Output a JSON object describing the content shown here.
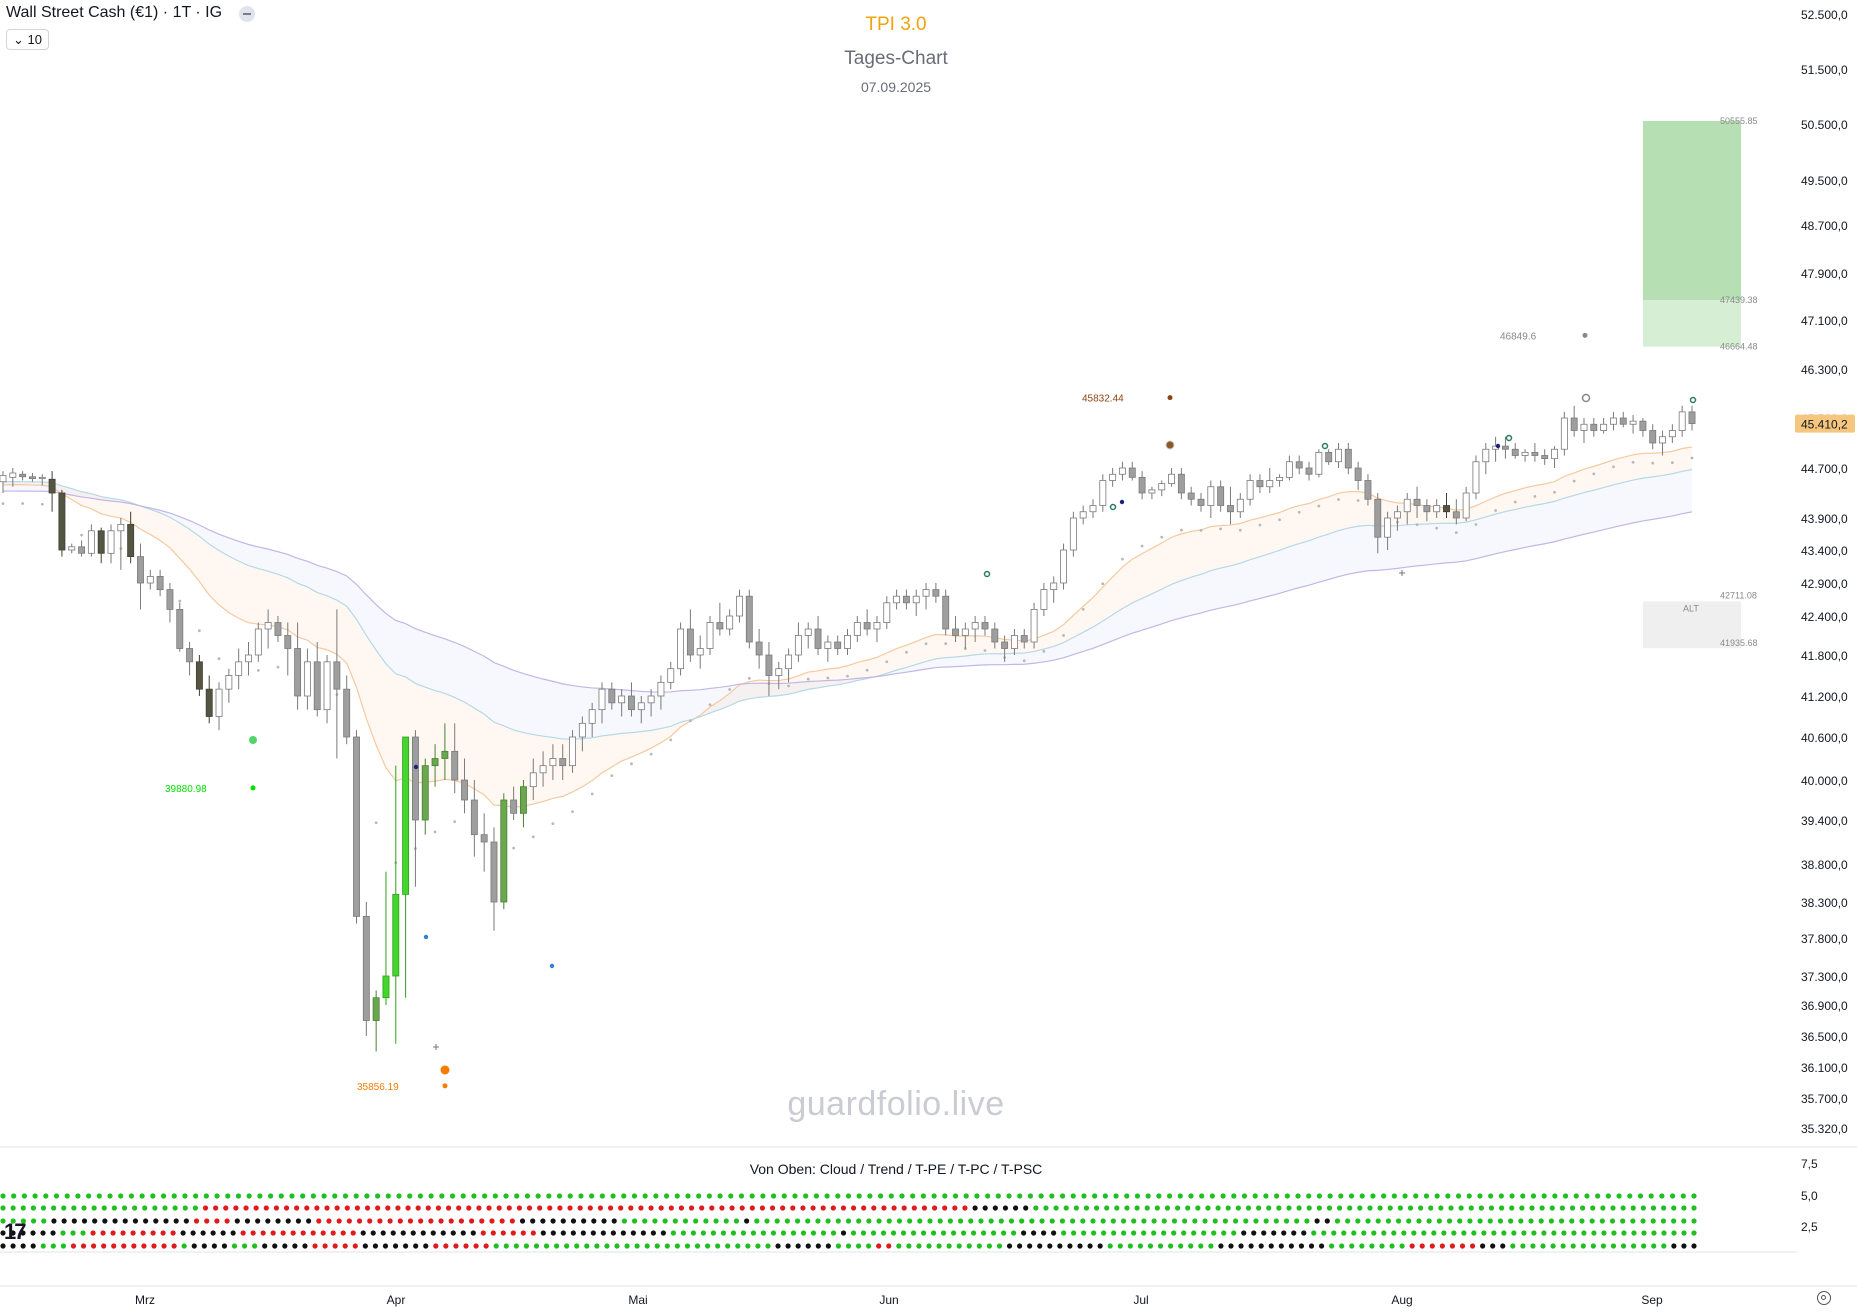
{
  "header": {
    "symbol": "Wall Street Cash (€1) · 1T · IG",
    "count_label": "10"
  },
  "titles": {
    "main": "TPI 3.0",
    "sub": "Tages-Chart",
    "date": "07.09.2025"
  },
  "watermark": "guardfolio.live",
  "indicator": {
    "caption": "Von Oben: Cloud / Trend / T-PE / T-PC / T-PSC",
    "y_ticks": [
      "7,5",
      "5,0",
      "2,5"
    ],
    "rows": [
      "GGGGGGGGGGGGGGGGGGGGGGGGGGGGGGGGGGGGGGGGGGGGGGGGGGGGGGGGGGGGGGGGGGGGGGGGGGGGGGGGGGGGGGGGGGGGGGGGGGGGGGGGGGGGGGGGGGGGGGGGGGGGGGGGGGGGGGGGGGGGGGGGGGGGGGGGGGGGGGG",
      "GGGGGGGGGGGGGGGGGGGGRRRRRRRRRRRRRRRRRRRRRRRRRRRRRRRRRRRRRRRRRRRRRRRRRRRRRRRRRRRRRRRRRRRRRRRRRRRRBBBBBBGGGGGGGGGGGGGGGGGGGGGGGGGGGGGGGGGGGGGGGGGGGGGGGGGGGGGGGGGGGGGGGGGG",
      "GGGGGBBBBBBBBBBBBBBRRRRBBBBBBBBRRRRRRRRRRRRRRRRRRRRBBBBBBBBBBGGGGGGGGGGGGBGGGGGGGGGGGGGGGGGGGGGGGGGGGGGGGGGGGGGGGGGGGGGGGGGGGGGGGBBGGGGGGGGGGGGGGGGGGGGGGGGGGGGGGGGGGGG",
      "BBBBBBGGGRRRRRRRRRBBBBBBRRRRRRRRRRRRBBBBBBBBBBBBRRRRRRBBBBBBBBBBBBBGGGGGGGGGGGGGGGGGBGGGGGGGGGGGGGGGGGBBBBGGGGGGGGGGGGGGGGGGBBBBBBBGGGGGGGGGGGGGGGGGGGGGGGGGGGGGGGGGGGGGGG",
      "BBBBGGGRRRRRRRRRRRGBBBBGGGBBBBBRRRRRBBBBBBBRRRRRRGGGGGGGGGGGGGGGGGGGGGGGGGGGGBBBBBBGGGGRRGGGGGGGGGGGBBBBBBBBBBGGGGGGGGGGGBBBBBBBBBBBGGGGGGGGRRRRRRRBBBGGGGGGGGGGGGGGGGBBB"
    ]
  },
  "chart_data": {
    "type": "candlestick",
    "x_labels": [
      "Mrz",
      "Apr",
      "Mai",
      "Jun",
      "Jul",
      "Aug",
      "Sep"
    ],
    "y_ticks": [
      "52.500,0",
      "51.500,0",
      "50.500,0",
      "49.500,0",
      "48.700,0",
      "47.900,0",
      "47.100,0",
      "46.300,0",
      "45.500,0",
      "44.700,0",
      "43.900,0",
      "43.400,0",
      "42.900,0",
      "42.400,0",
      "41.800,0",
      "41.200,0",
      "40.600,0",
      "40.000,0",
      "39.400,0",
      "38.800,0",
      "38.300,0",
      "37.800,0",
      "37.300,0",
      "36.900,0",
      "36.500,0",
      "36.100,0",
      "35.700,0",
      "35.320,0"
    ],
    "y_range": [
      35000,
      52800
    ],
    "last_price": "45.410,2",
    "candles": [
      [
        44480,
        44650,
        44300,
        44580
      ],
      [
        44550,
        44700,
        44400,
        44620
      ],
      [
        44600,
        44650,
        44500,
        44560
      ],
      [
        44560,
        44620,
        44480,
        44530
      ],
      [
        44530,
        44600,
        44420,
        44550
      ],
      [
        44520,
        44650,
        44000,
        44300
      ],
      [
        44300,
        44350,
        43300,
        43400
      ],
      [
        43400,
        43500,
        43350,
        43450
      ],
      [
        43450,
        43550,
        43300,
        43350
      ],
      [
        43350,
        43800,
        43300,
        43700
      ],
      [
        43700,
        43750,
        43200,
        43350
      ],
      [
        43350,
        43800,
        43200,
        43700
      ],
      [
        43700,
        43900,
        43100,
        43800
      ],
      [
        43800,
        44000,
        43200,
        43300
      ],
      [
        43300,
        43500,
        42500,
        42900
      ],
      [
        42900,
        43100,
        42800,
        43000
      ],
      [
        43000,
        43100,
        42700,
        42800
      ],
      [
        42800,
        42900,
        42300,
        42500
      ],
      [
        42500,
        42600,
        41850,
        41900
      ],
      [
        41900,
        42000,
        41500,
        41700
      ],
      [
        41700,
        41800,
        41200,
        41300
      ],
      [
        41300,
        41500,
        40800,
        40900
      ],
      [
        40900,
        41400,
        40700,
        41300
      ],
      [
        41300,
        41600,
        41100,
        41500
      ],
      [
        41500,
        41900,
        41300,
        41700
      ],
      [
        41700,
        42000,
        41500,
        41800
      ],
      [
        41800,
        42300,
        41700,
        42200
      ],
      [
        42200,
        42500,
        41900,
        42300
      ],
      [
        42300,
        42400,
        42000,
        42100
      ],
      [
        42100,
        42300,
        41500,
        41900
      ],
      [
        41900,
        42300,
        41000,
        41200
      ],
      [
        41200,
        41900,
        41000,
        41700
      ],
      [
        41700,
        42000,
        40900,
        41000
      ],
      [
        41000,
        41800,
        40800,
        41700
      ],
      [
        41700,
        42500,
        40300,
        41300
      ],
      [
        41300,
        41500,
        40500,
        40600
      ],
      [
        40600,
        40700,
        38000,
        38100
      ],
      [
        38100,
        38300,
        36500,
        36700
      ],
      [
        36700,
        37100,
        36300,
        37000
      ],
      [
        37000,
        38700,
        36900,
        37300
      ],
      [
        37300,
        40200,
        36400,
        38400
      ],
      [
        38400,
        40600,
        37000,
        40600
      ],
      [
        40600,
        40700,
        38500,
        39400
      ],
      [
        39400,
        40300,
        39200,
        40200
      ],
      [
        40200,
        40500,
        39900,
        40300
      ],
      [
        40300,
        40800,
        40000,
        40400
      ],
      [
        40400,
        40800,
        39800,
        40000
      ],
      [
        40000,
        40300,
        39500,
        39700
      ],
      [
        39700,
        40000,
        38900,
        39200
      ],
      [
        39200,
        39500,
        38700,
        39100
      ],
      [
        39100,
        39300,
        37900,
        38300
      ],
      [
        38300,
        39800,
        38200,
        39700
      ],
      [
        39700,
        39900,
        39400,
        39500
      ],
      [
        39500,
        40000,
        39300,
        39900
      ],
      [
        39900,
        40300,
        39700,
        40100
      ],
      [
        40100,
        40400,
        39900,
        40200
      ],
      [
        40200,
        40500,
        40000,
        40300
      ],
      [
        40300,
        40500,
        40000,
        40200
      ],
      [
        40200,
        40700,
        40100,
        40600
      ],
      [
        40600,
        40900,
        40400,
        40800
      ],
      [
        40800,
        41100,
        40600,
        41000
      ],
      [
        41000,
        41400,
        40800,
        41300
      ],
      [
        41300,
        41400,
        41000,
        41100
      ],
      [
        41100,
        41300,
        40900,
        41200
      ],
      [
        41200,
        41400,
        40900,
        41000
      ],
      [
        41000,
        41200,
        40800,
        41100
      ],
      [
        41100,
        41300,
        40900,
        41200
      ],
      [
        41200,
        41500,
        41000,
        41400
      ],
      [
        41400,
        41700,
        41300,
        41600
      ],
      [
        41600,
        42300,
        41500,
        42200
      ],
      [
        42200,
        42500,
        41700,
        41800
      ],
      [
        41800,
        42100,
        41600,
        41900
      ],
      [
        41900,
        42400,
        41800,
        42300
      ],
      [
        42300,
        42600,
        42100,
        42200
      ],
      [
        42200,
        42500,
        42100,
        42400
      ],
      [
        42400,
        42800,
        42300,
        42700
      ],
      [
        42700,
        42800,
        41900,
        42000
      ],
      [
        42000,
        42200,
        41600,
        41800
      ],
      [
        41800,
        42000,
        41200,
        41500
      ],
      [
        41500,
        41700,
        41300,
        41600
      ],
      [
        41600,
        41900,
        41400,
        41800
      ],
      [
        41800,
        42300,
        41700,
        42100
      ],
      [
        42100,
        42300,
        41900,
        42200
      ],
      [
        42200,
        42400,
        41800,
        41900
      ],
      [
        41900,
        42100,
        41700,
        42000
      ],
      [
        42000,
        42100,
        41800,
        41900
      ],
      [
        41900,
        42200,
        41800,
        42100
      ],
      [
        42100,
        42400,
        42000,
        42300
      ],
      [
        42300,
        42500,
        42100,
        42200
      ],
      [
        42200,
        42400,
        42000,
        42300
      ],
      [
        42300,
        42700,
        42200,
        42600
      ],
      [
        42600,
        42800,
        42500,
        42700
      ],
      [
        42700,
        42800,
        42500,
        42600
      ],
      [
        42600,
        42800,
        42400,
        42700
      ],
      [
        42700,
        42900,
        42500,
        42800
      ],
      [
        42800,
        42900,
        42600,
        42700
      ],
      [
        42700,
        42800,
        42100,
        42200
      ],
      [
        42200,
        42400,
        42000,
        42100
      ],
      [
        42100,
        42300,
        41900,
        42200
      ],
      [
        42200,
        42400,
        42000,
        42300
      ],
      [
        42300,
        42400,
        42100,
        42200
      ],
      [
        42200,
        42300,
        41900,
        42000
      ],
      [
        42000,
        42100,
        41700,
        41900
      ],
      [
        41900,
        42200,
        41800,
        42100
      ],
      [
        42100,
        42200,
        41900,
        42000
      ],
      [
        42000,
        42600,
        41900,
        42500
      ],
      [
        42500,
        42900,
        42400,
        42800
      ],
      [
        42800,
        43000,
        42600,
        42900
      ],
      [
        42900,
        43500,
        42800,
        43400
      ],
      [
        43400,
        44000,
        43300,
        43900
      ],
      [
        43900,
        44100,
        43800,
        44000
      ],
      [
        44000,
        44200,
        43900,
        44100
      ],
      [
        44100,
        44600,
        44000,
        44500
      ],
      [
        44500,
        44700,
        44400,
        44600
      ],
      [
        44600,
        44800,
        44500,
        44700
      ],
      [
        44700,
        44800,
        44500,
        44550
      ],
      [
        44550,
        44650,
        44200,
        44300
      ],
      [
        44300,
        44400,
        44200,
        44350
      ],
      [
        44350,
        44500,
        44250,
        44450
      ],
      [
        44450,
        44700,
        44400,
        44600
      ],
      [
        44600,
        44700,
        44200,
        44300
      ],
      [
        44300,
        44400,
        44100,
        44200
      ],
      [
        44200,
        44300,
        44000,
        44100
      ],
      [
        44100,
        44500,
        43900,
        44400
      ],
      [
        44400,
        44500,
        44000,
        44100
      ],
      [
        44100,
        44400,
        43800,
        44000
      ],
      [
        44000,
        44300,
        43900,
        44200
      ],
      [
        44200,
        44600,
        44100,
        44500
      ],
      [
        44500,
        44600,
        44300,
        44400
      ],
      [
        44400,
        44700,
        44300,
        44500
      ],
      [
        44500,
        44600,
        44400,
        44550
      ],
      [
        44550,
        44900,
        44500,
        44800
      ],
      [
        44800,
        44900,
        44600,
        44700
      ],
      [
        44700,
        44800,
        44500,
        44600
      ],
      [
        44600,
        45000,
        44550,
        44950
      ],
      [
        44950,
        45000,
        44750,
        44800
      ],
      [
        44800,
        45100,
        44700,
        45000
      ],
      [
        45000,
        45100,
        44600,
        44700
      ],
      [
        44700,
        44800,
        44350,
        44500
      ],
      [
        44500,
        44600,
        44100,
        44200
      ],
      [
        44200,
        44300,
        43350,
        43600
      ],
      [
        43600,
        44000,
        43400,
        43900
      ],
      [
        43900,
        44100,
        43700,
        44000
      ],
      [
        44000,
        44300,
        43800,
        44200
      ],
      [
        44200,
        44400,
        43900,
        44100
      ],
      [
        44100,
        44200,
        43850,
        44000
      ],
      [
        44000,
        44200,
        43900,
        44100
      ],
      [
        44100,
        44300,
        43900,
        44000
      ],
      [
        44000,
        44200,
        43800,
        43900
      ],
      [
        43900,
        44400,
        43850,
        44300
      ],
      [
        44300,
        44900,
        44200,
        44800
      ],
      [
        44800,
        45100,
        44600,
        45000
      ],
      [
        45000,
        45200,
        44800,
        45050
      ],
      [
        45050,
        45200,
        44850,
        45000
      ],
      [
        45000,
        45100,
        44850,
        44900
      ],
      [
        44900,
        45000,
        44800,
        44950
      ],
      [
        44950,
        45100,
        44800,
        44900
      ],
      [
        44900,
        45000,
        44750,
        44850
      ],
      [
        44850,
        45050,
        44700,
        45000
      ],
      [
        45000,
        45600,
        44900,
        45500
      ],
      [
        45500,
        45700,
        45200,
        45300
      ],
      [
        45300,
        45500,
        45100,
        45400
      ],
      [
        45400,
        45500,
        45200,
        45300
      ],
      [
        45300,
        45500,
        45250,
        45400
      ],
      [
        45400,
        45600,
        45300,
        45500
      ],
      [
        45500,
        45600,
        45350,
        45400
      ],
      [
        45400,
        45550,
        45250,
        45450
      ],
      [
        45450,
        45500,
        45200,
        45300
      ],
      [
        45300,
        45400,
        45000,
        45100
      ],
      [
        45100,
        45300,
        44900,
        45200
      ],
      [
        45200,
        45400,
        45100,
        45300
      ],
      [
        45300,
        45700,
        45200,
        45600
      ],
      [
        45600,
        45700,
        45300,
        45410
      ]
    ],
    "annotations": [
      {
        "label": "39880.98",
        "price": 39880.98,
        "color": "#00e000"
      },
      {
        "label": "35856.19",
        "price": 35856.19,
        "color": "#f57c00"
      },
      {
        "label": "45832.44",
        "price": 45832.44,
        "color": "#8b4513"
      },
      {
        "label": "46849.6",
        "price": 46849.6,
        "color": "#888888"
      }
    ],
    "target_zone": {
      "top": 50555.85,
      "mid": 47439.38,
      "bottom": 46664.48,
      "labels": [
        "50555.85",
        "47439.38",
        "46664.48"
      ]
    },
    "alt_zone": {
      "top": 42711.08,
      "bottom": 41935.68,
      "labels": [
        "42711.08",
        "41935.68",
        "ALT"
      ]
    },
    "colors": {
      "up": "#ffffff",
      "down": "#9e9e9e",
      "bull_green": "#6aa84f",
      "bright_green": "#44d62c",
      "dark_down": "#555544",
      "ind_green": "#1fbf1f",
      "ind_red": "#e01b1b",
      "ind_black": "#111111",
      "accent_price": "#f5c77e"
    }
  }
}
